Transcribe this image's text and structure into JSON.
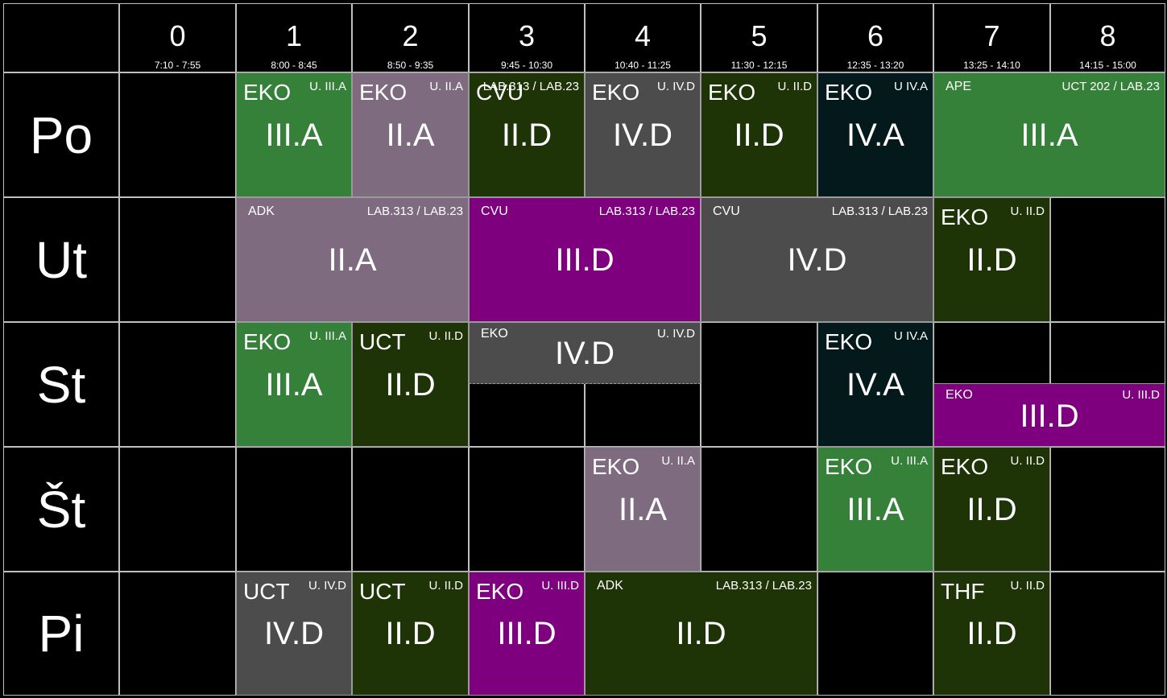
{
  "header": {
    "periods": [
      {
        "num": "0",
        "time": "7:10 - 7:55"
      },
      {
        "num": "1",
        "time": "8:00 - 8:45"
      },
      {
        "num": "2",
        "time": "8:50 - 9:35"
      },
      {
        "num": "3",
        "time": "9:45 - 10:30"
      },
      {
        "num": "4",
        "time": "10:40 - 11:25"
      },
      {
        "num": "5",
        "time": "11:30 - 12:15"
      },
      {
        "num": "6",
        "time": "12:35 - 13:20"
      },
      {
        "num": "7",
        "time": "13:25 - 14:10"
      },
      {
        "num": "8",
        "time": "14:15 - 15:00"
      }
    ]
  },
  "days": [
    "Po",
    "Ut",
    "St",
    "Št",
    "Pi"
  ],
  "colors": {
    "III.A": "#35813a",
    "II.A": "#7f6b80",
    "II.D": "#1e3306",
    "IV.D": "#4c4c4c",
    "IV.A": "#04191b",
    "III.D": "#7f007f"
  },
  "lessons": [
    {
      "day": 0,
      "start": 1,
      "span": 1,
      "subject": "EKO",
      "room": "U. III.A",
      "class": "III.A",
      "style": "big"
    },
    {
      "day": 0,
      "start": 2,
      "span": 1,
      "subject": "EKO",
      "room": "U. II.A",
      "class": "II.A",
      "style": "big"
    },
    {
      "day": 0,
      "start": 3,
      "span": 1,
      "subject": "CVU",
      "room": "LAB.313 / LAB.23",
      "class": "II.D",
      "style": "big"
    },
    {
      "day": 0,
      "start": 4,
      "span": 1,
      "subject": "EKO",
      "room": "U. IV.D",
      "class": "IV.D",
      "style": "big"
    },
    {
      "day": 0,
      "start": 5,
      "span": 1,
      "subject": "EKO",
      "room": "U. II.D",
      "class": "II.D",
      "style": "big"
    },
    {
      "day": 0,
      "start": 6,
      "span": 1,
      "subject": "EKO",
      "room": "U IV.A",
      "class": "IV.A",
      "style": "big"
    },
    {
      "day": 0,
      "start": 7,
      "span": 2,
      "subject": "APE",
      "room": "UCT 202 / LAB.23",
      "class": "III.A",
      "style": "small"
    },
    {
      "day": 1,
      "start": 1,
      "span": 2,
      "subject": "ADK",
      "room": "LAB.313 / LAB.23",
      "class": "II.A",
      "style": "small"
    },
    {
      "day": 1,
      "start": 3,
      "span": 2,
      "subject": "CVU",
      "room": "LAB.313 / LAB.23",
      "class": "III.D",
      "style": "small"
    },
    {
      "day": 1,
      "start": 5,
      "span": 2,
      "subject": "CVU",
      "room": "LAB.313 / LAB.23",
      "class": "IV.D",
      "style": "small"
    },
    {
      "day": 1,
      "start": 7,
      "span": 1,
      "subject": "EKO",
      "room": "U. II.D",
      "class": "II.D",
      "style": "big"
    },
    {
      "day": 2,
      "start": 1,
      "span": 1,
      "subject": "EKO",
      "room": "U. III.A",
      "class": "III.A",
      "style": "big"
    },
    {
      "day": 2,
      "start": 2,
      "span": 1,
      "subject": "UCT",
      "room": "U. II.D",
      "class": "II.D",
      "style": "big"
    },
    {
      "day": 2,
      "start": 3,
      "span": 2,
      "subject": "EKO",
      "room": "U. IV.D",
      "class": "IV.D",
      "style": "small",
      "half": "top"
    },
    {
      "day": 2,
      "start": 6,
      "span": 1,
      "subject": "EKO",
      "room": "U IV.A",
      "class": "IV.A",
      "style": "big"
    },
    {
      "day": 2,
      "start": 7,
      "span": 2,
      "subject": "EKO",
      "room": "U. III.D",
      "class": "III.D",
      "style": "small",
      "half": "bottom"
    },
    {
      "day": 3,
      "start": 4,
      "span": 1,
      "subject": "EKO",
      "room": "U. II.A",
      "class": "II.A",
      "style": "big"
    },
    {
      "day": 3,
      "start": 6,
      "span": 1,
      "subject": "EKO",
      "room": "U. III.A",
      "class": "III.A",
      "style": "big"
    },
    {
      "day": 3,
      "start": 7,
      "span": 1,
      "subject": "EKO",
      "room": "U. II.D",
      "class": "II.D",
      "style": "big"
    },
    {
      "day": 4,
      "start": 1,
      "span": 1,
      "subject": "UCT",
      "room": "U. IV.D",
      "class": "IV.D",
      "style": "big"
    },
    {
      "day": 4,
      "start": 2,
      "span": 1,
      "subject": "UCT",
      "room": "U. II.D",
      "class": "II.D",
      "style": "big"
    },
    {
      "day": 4,
      "start": 3,
      "span": 1,
      "subject": "EKO",
      "room": "U. III.D",
      "class": "III.D",
      "style": "big"
    },
    {
      "day": 4,
      "start": 4,
      "span": 2,
      "subject": "ADK",
      "room": "LAB.313 / LAB.23",
      "class": "II.D",
      "style": "small"
    },
    {
      "day": 4,
      "start": 7,
      "span": 1,
      "subject": "THF",
      "room": "U. II.D",
      "class": "II.D",
      "style": "big"
    }
  ]
}
